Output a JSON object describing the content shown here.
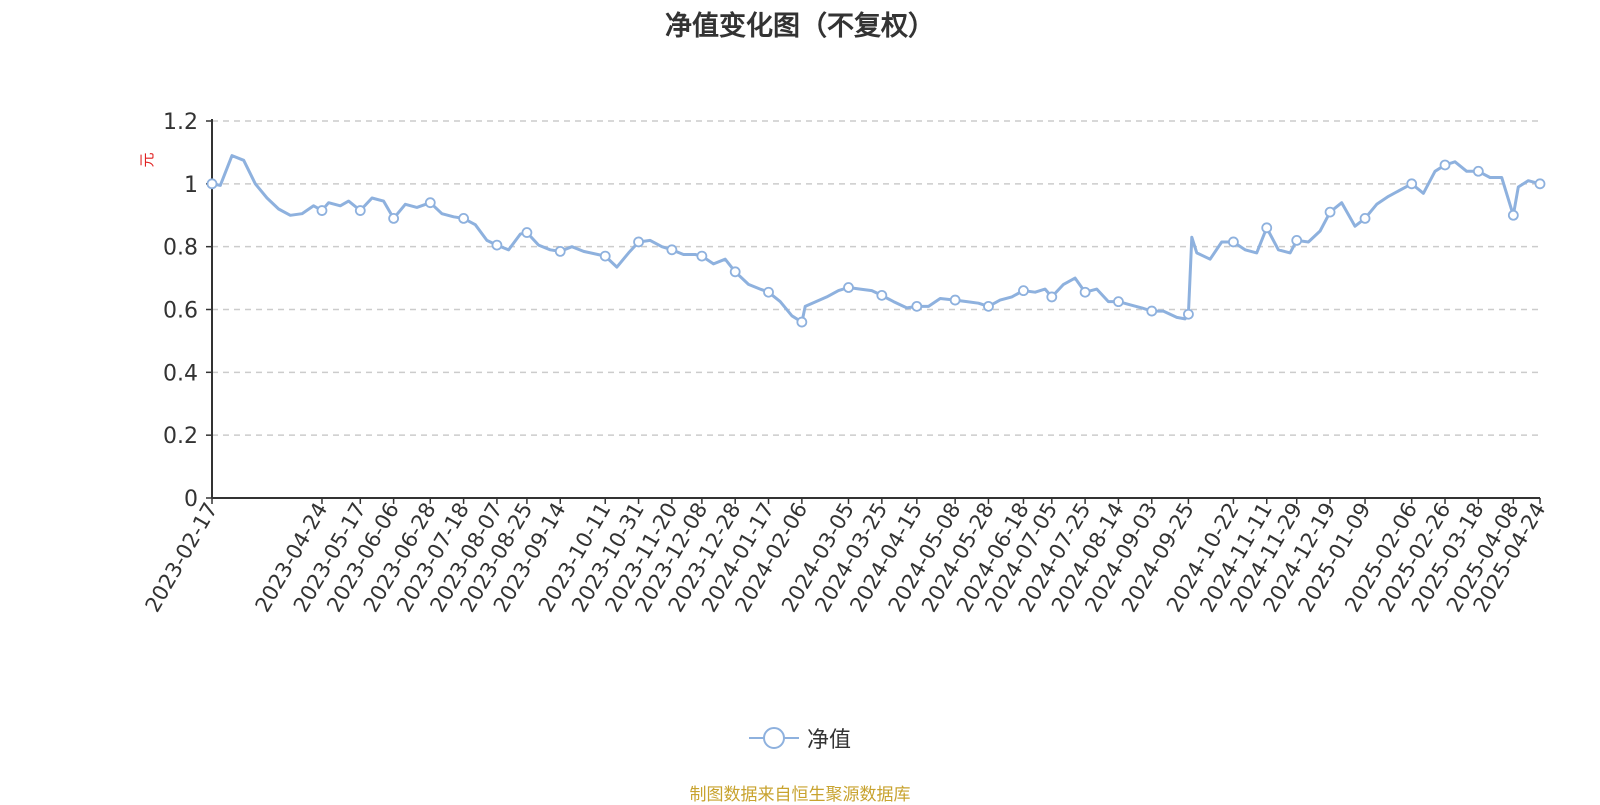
{
  "title": "净值变化图（不复权）",
  "source": "制图数据来自恒生聚源数据库",
  "legend": {
    "label": "净值"
  },
  "colors": {
    "line": "#8eb1de",
    "axis": "#333333",
    "grid": "#cccccc",
    "unit": "#e02020",
    "source": "#c8a32f"
  },
  "chart_data": {
    "type": "line",
    "title": "净值变化图（不复权）",
    "ylabel": "元",
    "ylim": [
      0,
      1.2
    ],
    "yticks": [
      "0",
      "0.2",
      "0.4",
      "0.6",
      "0.8",
      "1",
      "1.2"
    ],
    "grid": true,
    "legend_position": "bottom",
    "x_ticks": [
      "2023-02-17",
      "2023-04-24",
      "2023-05-17",
      "2023-06-06",
      "2023-06-28",
      "2023-07-18",
      "2023-08-07",
      "2023-08-25",
      "2023-09-14",
      "2023-10-11",
      "2023-10-31",
      "2023-11-20",
      "2023-12-08",
      "2023-12-28",
      "2024-01-17",
      "2024-02-06",
      "2024-03-05",
      "2024-03-25",
      "2024-04-15",
      "2024-05-08",
      "2024-05-28",
      "2024-06-18",
      "2024-07-05",
      "2024-07-25",
      "2024-08-14",
      "2024-09-03",
      "2024-09-25",
      "2024-10-22",
      "2024-11-11",
      "2024-11-29",
      "2024-12-19",
      "2025-01-09",
      "2025-02-06",
      "2025-02-26",
      "2025-03-18",
      "2025-04-08",
      "2025-04-24"
    ],
    "series": [
      {
        "name": "净值",
        "x": [
          "2023-02-17",
          "2023-02-22",
          "2023-03-01",
          "2023-03-08",
          "2023-03-15",
          "2023-03-22",
          "2023-03-29",
          "2023-04-05",
          "2023-04-12",
          "2023-04-19",
          "2023-04-24",
          "2023-04-28",
          "2023-05-05",
          "2023-05-10",
          "2023-05-17",
          "2023-05-24",
          "2023-05-31",
          "2023-06-06",
          "2023-06-13",
          "2023-06-20",
          "2023-06-28",
          "2023-07-05",
          "2023-07-12",
          "2023-07-18",
          "2023-07-25",
          "2023-08-01",
          "2023-08-07",
          "2023-08-14",
          "2023-08-21",
          "2023-08-25",
          "2023-09-01",
          "2023-09-08",
          "2023-09-14",
          "2023-09-21",
          "2023-09-28",
          "2023-10-11",
          "2023-10-18",
          "2023-10-25",
          "2023-10-31",
          "2023-11-07",
          "2023-11-14",
          "2023-11-20",
          "2023-11-27",
          "2023-12-04",
          "2023-12-08",
          "2023-12-15",
          "2023-12-22",
          "2023-12-28",
          "2024-01-05",
          "2024-01-12",
          "2024-01-17",
          "2024-01-24",
          "2024-01-31",
          "2024-02-06",
          "2024-02-08",
          "2024-02-21",
          "2024-02-28",
          "2024-03-05",
          "2024-03-12",
          "2024-03-19",
          "2024-03-25",
          "2024-04-01",
          "2024-04-09",
          "2024-04-15",
          "2024-04-22",
          "2024-04-29",
          "2024-05-08",
          "2024-05-15",
          "2024-05-22",
          "2024-05-28",
          "2024-06-04",
          "2024-06-11",
          "2024-06-18",
          "2024-06-25",
          "2024-07-01",
          "2024-07-05",
          "2024-07-12",
          "2024-07-19",
          "2024-07-25",
          "2024-08-01",
          "2024-08-08",
          "2024-08-14",
          "2024-08-21",
          "2024-08-28",
          "2024-09-03",
          "2024-09-10",
          "2024-09-18",
          "2024-09-23",
          "2024-09-25",
          "2024-09-27",
          "2024-09-30",
          "2024-10-08",
          "2024-10-15",
          "2024-10-22",
          "2024-10-29",
          "2024-11-05",
          "2024-11-11",
          "2024-11-18",
          "2024-11-25",
          "2024-11-29",
          "2024-12-06",
          "2024-12-13",
          "2024-12-19",
          "2024-12-26",
          "2025-01-03",
          "2025-01-09",
          "2025-01-16",
          "2025-01-23",
          "2025-02-06",
          "2025-02-13",
          "2025-02-20",
          "2025-02-26",
          "2025-03-04",
          "2025-03-11",
          "2025-03-18",
          "2025-03-25",
          "2025-04-01",
          "2025-04-08",
          "2025-04-11",
          "2025-04-17",
          "2025-04-24"
        ],
        "values": [
          1.0,
          0.995,
          1.09,
          1.075,
          1.0,
          0.955,
          0.92,
          0.9,
          0.905,
          0.93,
          0.915,
          0.94,
          0.93,
          0.945,
          0.915,
          0.955,
          0.945,
          0.89,
          0.935,
          0.925,
          0.94,
          0.905,
          0.895,
          0.89,
          0.87,
          0.82,
          0.805,
          0.79,
          0.84,
          0.845,
          0.805,
          0.79,
          0.785,
          0.8,
          0.785,
          0.77,
          0.735,
          0.78,
          0.815,
          0.82,
          0.8,
          0.79,
          0.775,
          0.775,
          0.77,
          0.745,
          0.76,
          0.72,
          0.68,
          0.665,
          0.655,
          0.625,
          0.58,
          0.56,
          0.61,
          0.64,
          0.66,
          0.67,
          0.665,
          0.66,
          0.645,
          0.625,
          0.605,
          0.61,
          0.61,
          0.635,
          0.63,
          0.625,
          0.62,
          0.61,
          0.63,
          0.64,
          0.66,
          0.655,
          0.665,
          0.64,
          0.68,
          0.7,
          0.655,
          0.665,
          0.625,
          0.625,
          0.615,
          0.605,
          0.595,
          0.595,
          0.575,
          0.57,
          0.585,
          0.83,
          0.78,
          0.76,
          0.815,
          0.815,
          0.79,
          0.78,
          0.86,
          0.79,
          0.78,
          0.82,
          0.815,
          0.85,
          0.91,
          0.94,
          0.865,
          0.89,
          0.935,
          0.96,
          1.0,
          0.97,
          1.04,
          1.06,
          1.07,
          1.04,
          1.04,
          1.02,
          1.02,
          0.9,
          0.99,
          1.01,
          1.0
        ],
        "markers": [
          "2023-02-17",
          "2023-04-24",
          "2023-05-17",
          "2023-06-06",
          "2023-06-28",
          "2023-07-18",
          "2023-08-07",
          "2023-08-25",
          "2023-09-14",
          "2023-10-11",
          "2023-10-31",
          "2023-11-20",
          "2023-12-08",
          "2023-12-28",
          "2024-01-17",
          "2024-02-06",
          "2024-03-05",
          "2024-03-25",
          "2024-04-15",
          "2024-05-08",
          "2024-05-28",
          "2024-06-18",
          "2024-07-05",
          "2024-07-25",
          "2024-08-14",
          "2024-09-03",
          "2024-09-25",
          "2024-10-22",
          "2024-11-11",
          "2024-11-29",
          "2024-12-19",
          "2025-01-09",
          "2025-02-06",
          "2025-02-26",
          "2025-03-18",
          "2025-04-08",
          "2025-04-24"
        ]
      }
    ]
  }
}
